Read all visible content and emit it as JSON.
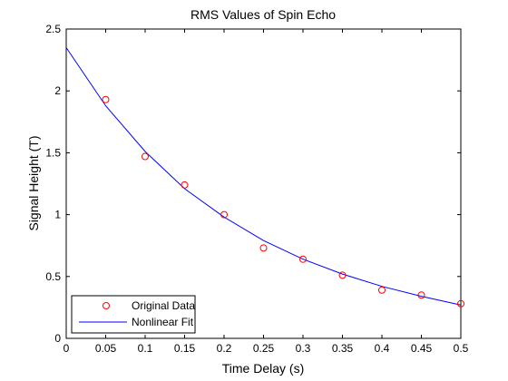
{
  "chart_data": {
    "type": "scatter",
    "title": "RMS Values of Spin Echo",
    "xlabel": "Time Delay (s)",
    "ylabel": "Signal Height (T)",
    "xlim": [
      0,
      0.5
    ],
    "ylim": [
      0,
      2.5
    ],
    "x_ticks": [
      "0",
      "0.05",
      "0.1",
      "0.15",
      "0.2",
      "0.25",
      "0.3",
      "0.35",
      "0.4",
      "0.45",
      "0.5"
    ],
    "y_ticks": [
      "0",
      "0.5",
      "1",
      "1.5",
      "2",
      "2.5"
    ],
    "grid": false,
    "legend_position": "bottom-left",
    "series": [
      {
        "name": "Original Data",
        "style": "markers",
        "marker": "circle",
        "color": "#ff0000",
        "x": [
          0.05,
          0.1,
          0.15,
          0.2,
          0.25,
          0.3,
          0.35,
          0.4,
          0.45,
          0.5
        ],
        "y": [
          1.93,
          1.47,
          1.24,
          1.0,
          0.73,
          0.64,
          0.51,
          0.39,
          0.35,
          0.28
        ]
      },
      {
        "name": "Nonlinear Fit",
        "style": "line",
        "color": "#0000ff",
        "x": [
          0,
          0.05,
          0.1,
          0.15,
          0.2,
          0.25,
          0.3,
          0.35,
          0.4,
          0.45,
          0.5
        ],
        "y": [
          2.35,
          1.88,
          1.51,
          1.21,
          0.98,
          0.79,
          0.64,
          0.52,
          0.42,
          0.34,
          0.27
        ]
      }
    ]
  }
}
